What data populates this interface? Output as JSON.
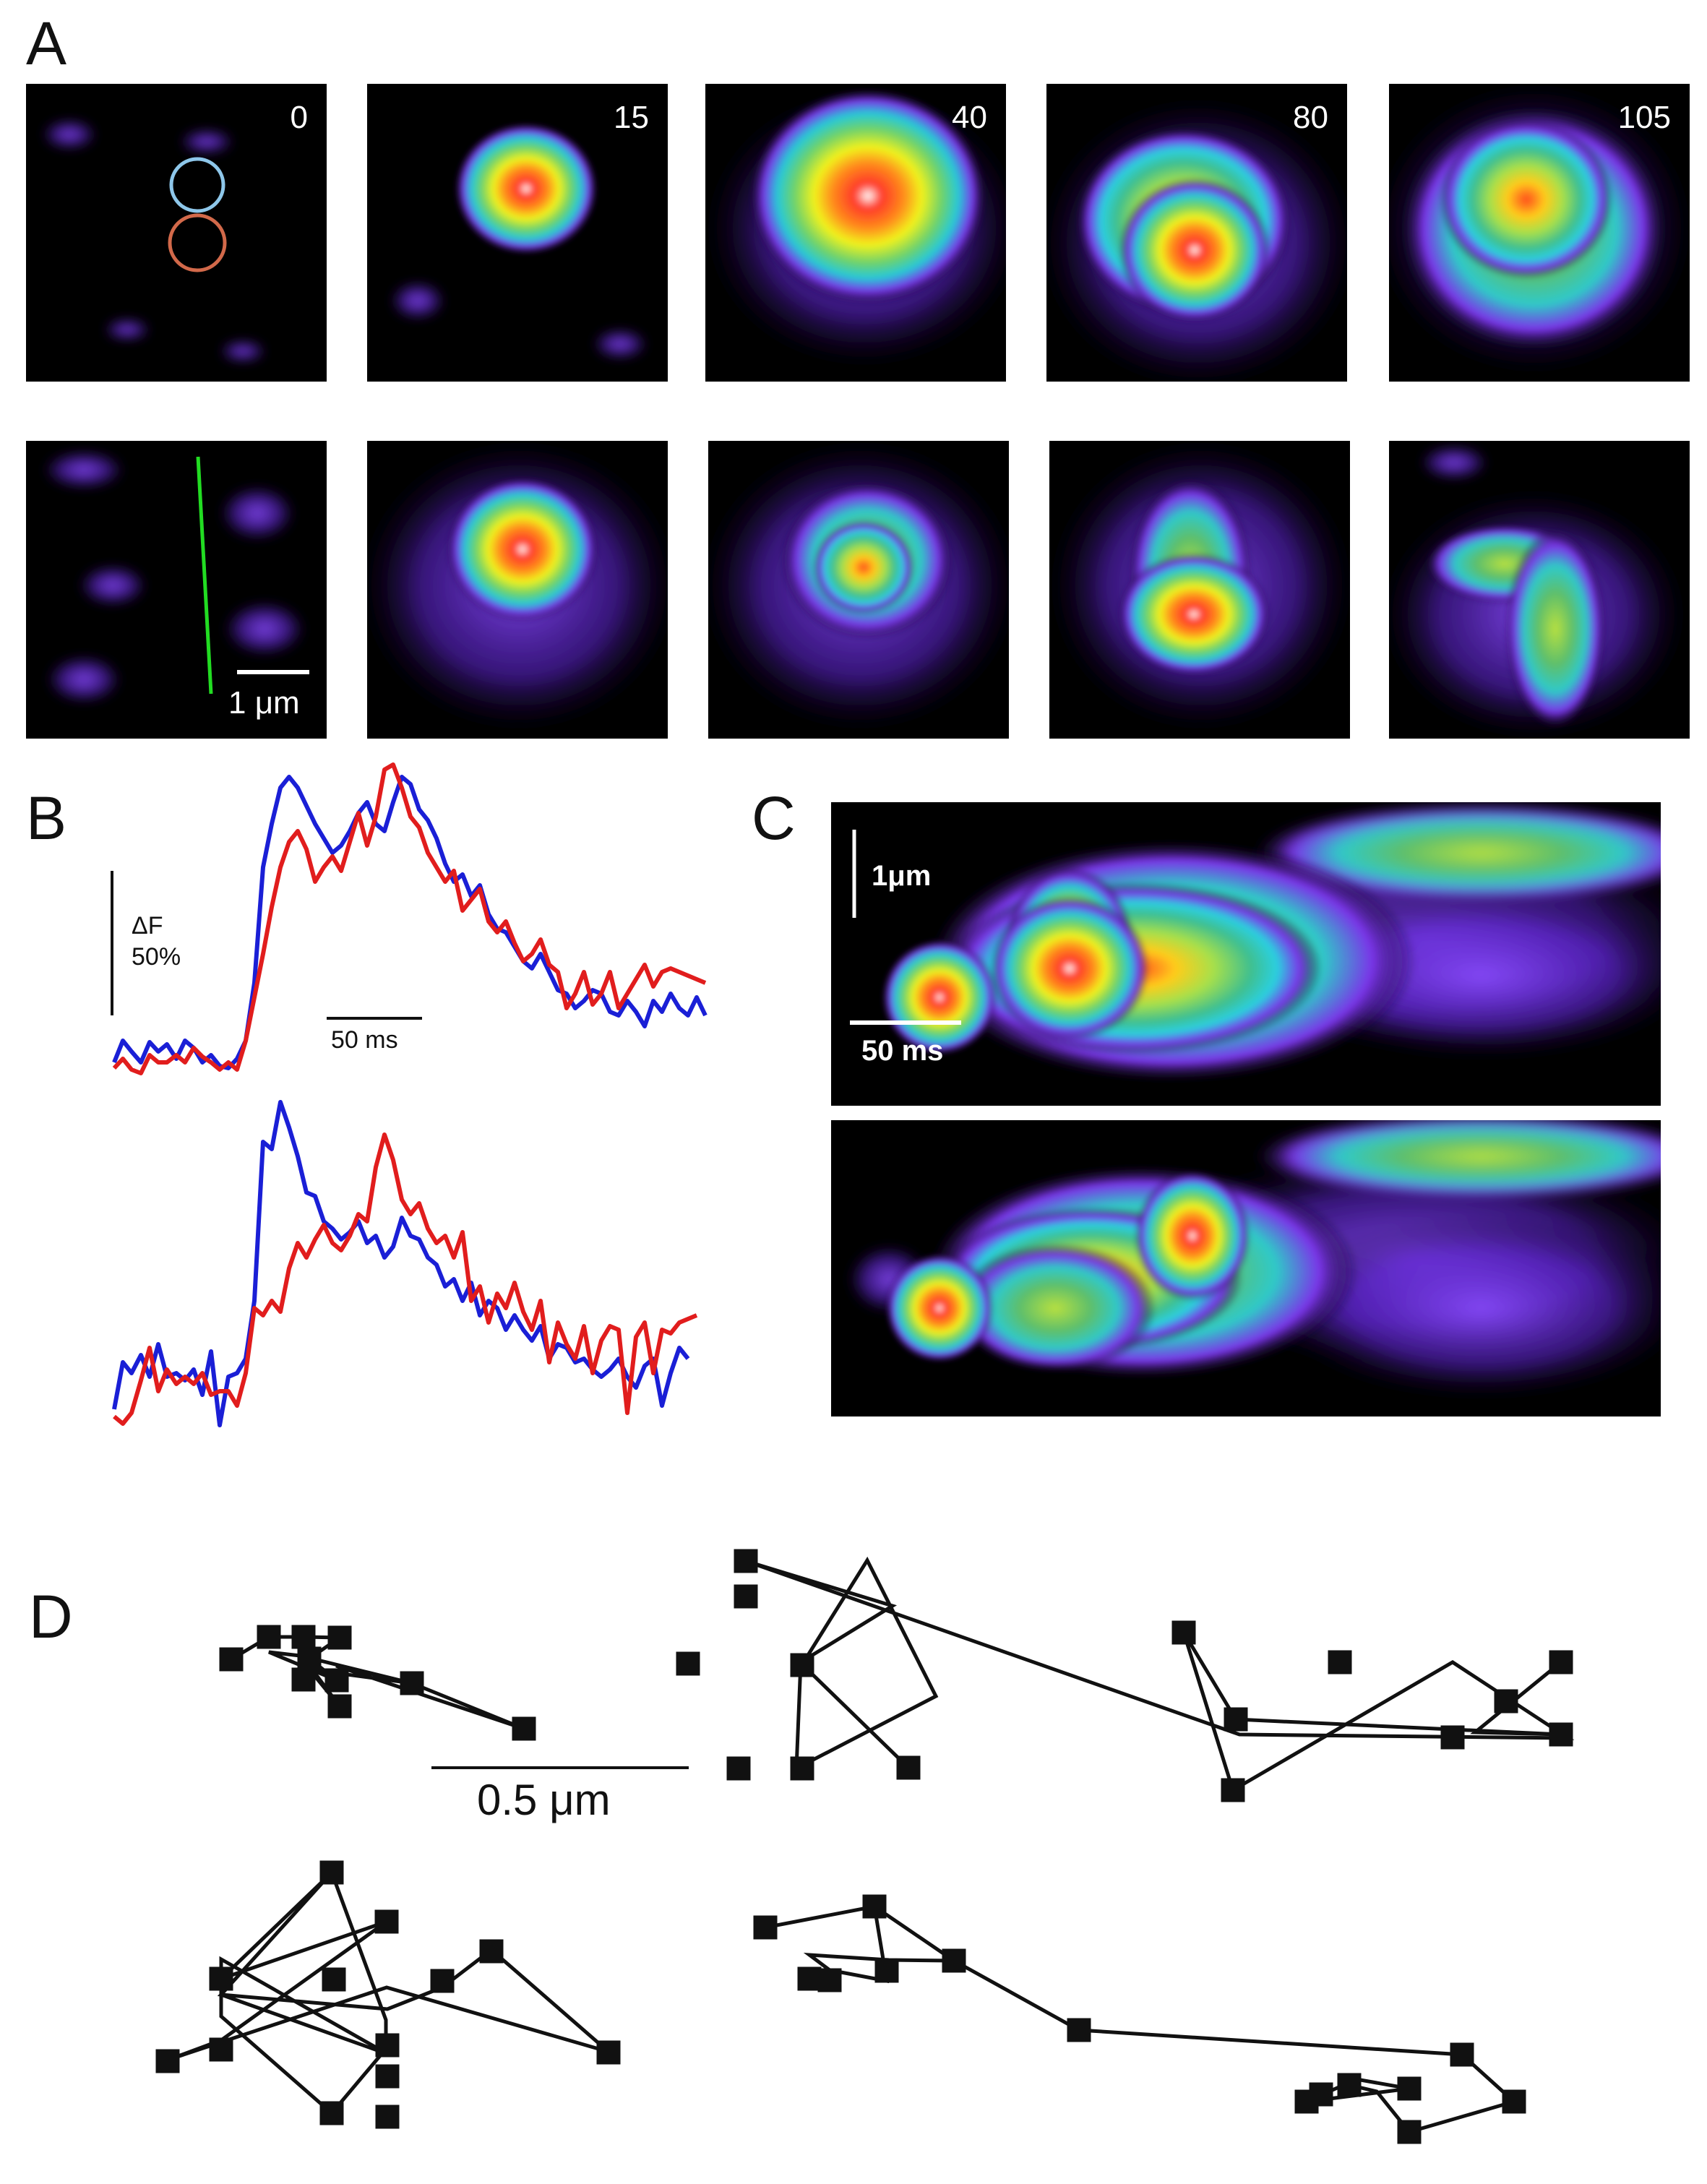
{
  "panels": {
    "a": {
      "letter": "A"
    },
    "b": {
      "letter": "B"
    },
    "c": {
      "letter": "C"
    },
    "d": {
      "letter": "D"
    }
  },
  "panel_a": {
    "time_labels": [
      "0",
      "15",
      "40",
      "80",
      "105"
    ],
    "scale_label": "1 μm",
    "roi_colors": {
      "upper_roi": "#8ec7ea",
      "lower_roi": "#d2694a",
      "line_scan": "#22dd22"
    }
  },
  "panel_b": {
    "ylabel_line1": "ΔF",
    "ylabel_line2": "50%",
    "time_scale": "50 ms",
    "colors": {
      "blue_trace": "#1a1fd6",
      "red_trace": "#e11d1d"
    }
  },
  "panel_c": {
    "distance_scale": "1μm",
    "time_scale": "50 ms"
  },
  "panel_d": {
    "scale_label": "0.5 μm"
  }
}
